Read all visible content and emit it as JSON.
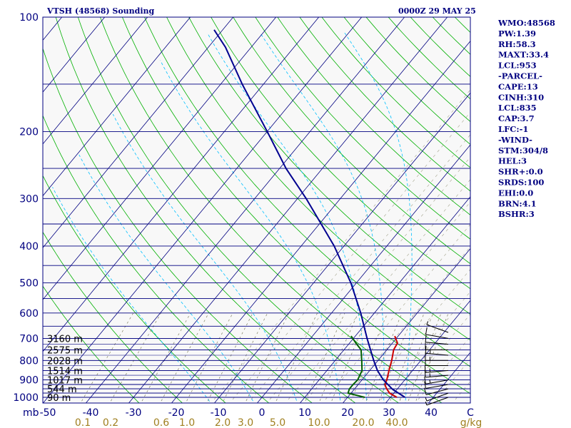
{
  "header": {
    "station_title": "VTSH (48568) Sounding",
    "time_label": "0000Z 29 MAY 25"
  },
  "side_panel": {
    "lines": [
      "WMO:48568",
      "PW:1.39",
      "RH:58.3",
      "MAXT:33.4",
      "LCL:953",
      "-PARCEL-",
      "CAPE:13",
      "CINH:310",
      "LCL:835",
      "CAP:3.7",
      "LFC:-1",
      "-WIND-",
      "STM:304/8",
      "HEL:3",
      "SHR+:0.0",
      "SRDS:100",
      "EHI:0.0",
      "BRN:4.1",
      "BSHR:3"
    ]
  },
  "colors": {
    "frame": "#000080",
    "isobar": "#000080",
    "isotherm": "#000080",
    "dry_adiabat": "#00b000",
    "moist_adiabat": "#00c0ff",
    "mixing_ratio": "#808060",
    "background": "#f8f8f8",
    "temperature": "#cc0000",
    "dewpoint": "#006000",
    "parcel": "#000090",
    "wind_barbs": "#000000",
    "label_text": "#000080",
    "mixing_label_text": "#a08020"
  },
  "chart_data": {
    "type": "skew-t",
    "y_axis": {
      "unit_label": "mb",
      "pressure_ticks": [
        100,
        200,
        300,
        400,
        500,
        600,
        700,
        800,
        900,
        1000
      ],
      "extra_isobars": [
        150,
        250,
        350,
        450,
        550,
        650,
        750,
        850,
        925,
        950,
        975,
        1000
      ],
      "pressure_range": [
        100,
        1050
      ]
    },
    "x_axis": {
      "temperature_ticks": [
        "-50",
        "-40",
        "-30",
        "-20",
        "-10",
        "0",
        "10",
        "20",
        "30",
        "40",
        "C"
      ],
      "temperature_range_at_surface": [
        -50,
        50
      ],
      "mixing_ratio_labels": [
        "0.1",
        "0.2",
        "0.6",
        "1.0",
        "2.0",
        "3.0",
        "5.0",
        "10.0",
        "20.0",
        "40.0",
        "g/kg"
      ]
    },
    "height_labels": [
      {
        "text": "3160 m",
        "pressure": 700
      },
      {
        "text": "2575 m",
        "pressure": 750
      },
      {
        "text": "2028 m",
        "pressure": 800
      },
      {
        "text": "1514 m",
        "pressure": 850
      },
      {
        "text": "1017 m",
        "pressure": 900
      },
      {
        "text": "544 m",
        "pressure": 950
      },
      {
        "text": "90 m",
        "pressure": 1000
      }
    ],
    "series": [
      {
        "key": "temperature",
        "points": [
          {
            "p": 1000,
            "t": 31.5
          },
          {
            "p": 975,
            "t": 29.0
          },
          {
            "p": 950,
            "t": 27.5
          },
          {
            "p": 925,
            "t": 26.2
          },
          {
            "p": 900,
            "t": 25.8
          },
          {
            "p": 850,
            "t": 24.5
          },
          {
            "p": 800,
            "t": 23.2
          },
          {
            "p": 750,
            "t": 21.6
          },
          {
            "p": 720,
            "t": 21.2
          },
          {
            "p": 690,
            "t": 19.2
          }
        ]
      },
      {
        "key": "dewpoint",
        "points": [
          {
            "p": 1000,
            "t": 24.0
          },
          {
            "p": 975,
            "t": 19.3
          },
          {
            "p": 950,
            "t": 18.8
          },
          {
            "p": 925,
            "t": 18.8
          },
          {
            "p": 900,
            "t": 19.0
          },
          {
            "p": 850,
            "t": 18.2
          },
          {
            "p": 800,
            "t": 16.2
          },
          {
            "p": 750,
            "t": 14.0
          },
          {
            "p": 720,
            "t": 11.5
          },
          {
            "p": 690,
            "t": 9.0
          }
        ]
      },
      {
        "key": "parcel",
        "points": [
          {
            "p": 1000,
            "t": 33.4
          },
          {
            "p": 953,
            "t": 29.0
          },
          {
            "p": 900,
            "t": 25.0
          },
          {
            "p": 850,
            "t": 21.8
          },
          {
            "p": 800,
            "t": 19.0
          },
          {
            "p": 700,
            "t": 13.2
          },
          {
            "p": 600,
            "t": 6.8
          },
          {
            "p": 500,
            "t": -1.3
          },
          {
            "p": 400,
            "t": -12.3
          },
          {
            "p": 300,
            "t": -28.0
          },
          {
            "p": 250,
            "t": -38.5
          },
          {
            "p": 200,
            "t": -50.0
          },
          {
            "p": 150,
            "t": -65.0
          },
          {
            "p": 120,
            "t": -76.0
          },
          {
            "p": 108,
            "t": -82.0
          }
        ]
      }
    ],
    "wind_barbs": [
      {
        "p": 1000,
        "dir": 250,
        "spd": 5
      },
      {
        "p": 975,
        "dir": 250,
        "spd": 5
      },
      {
        "p": 950,
        "dir": 255,
        "spd": 10
      },
      {
        "p": 925,
        "dir": 260,
        "spd": 10
      },
      {
        "p": 900,
        "dir": 260,
        "spd": 15
      },
      {
        "p": 875,
        "dir": 265,
        "spd": 15
      },
      {
        "p": 850,
        "dir": 265,
        "spd": 15
      },
      {
        "p": 825,
        "dir": 270,
        "spd": 10
      },
      {
        "p": 800,
        "dir": 270,
        "spd": 15
      },
      {
        "p": 775,
        "dir": 275,
        "spd": 15
      },
      {
        "p": 750,
        "dir": 270,
        "spd": 10
      },
      {
        "p": 725,
        "dir": 275,
        "spd": 10
      },
      {
        "p": 700,
        "dir": 280,
        "spd": 10
      },
      {
        "p": 675,
        "dir": 290,
        "spd": 5
      }
    ]
  }
}
